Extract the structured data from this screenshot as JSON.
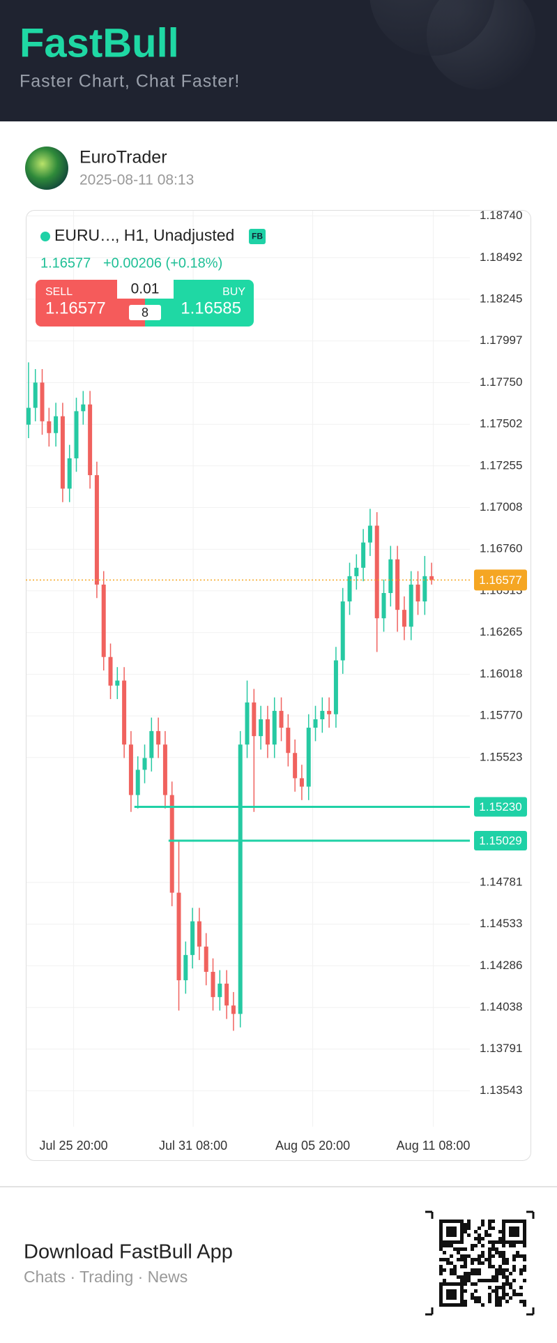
{
  "header": {
    "brand": "FastBull",
    "tagline": "Faster Chart, Chat Faster!"
  },
  "post": {
    "author": "EuroTrader",
    "date": "2025-08-11 08:13"
  },
  "chart_data": {
    "type": "candlestick",
    "symbol": "EURU…",
    "info": ", H1, Unadjusted",
    "badge": "FB",
    "quote": {
      "last": "1.16577",
      "change": "+0.00206 (+0.18%)"
    },
    "trade": {
      "sell_label": "SELL",
      "sell": "1.16577",
      "buy_label": "BUY",
      "buy": "1.16585",
      "lot": "0.01",
      "spread": "8"
    },
    "colors": {
      "up": "#26c9a2",
      "down": "#f0625e",
      "last": "#f5a623",
      "level": "#1fd1a6"
    },
    "open": [
      1.175,
      1.176,
      1.1775,
      1.1752,
      1.1745,
      1.1755,
      1.1712,
      1.173,
      1.1758,
      1.1762,
      1.172,
      1.1655,
      1.1612,
      1.1595,
      1.1598,
      1.156,
      1.153,
      1.1545,
      1.1552,
      1.1568,
      1.156,
      1.153,
      1.1472,
      1.142,
      1.1435,
      1.1455,
      1.144,
      1.1425,
      1.141,
      1.1418,
      1.1405,
      1.14,
      1.156,
      1.1585,
      1.1565,
      1.1575,
      1.156,
      1.158,
      1.157,
      1.1555,
      1.154,
      1.1535,
      1.157,
      1.1575,
      1.158,
      1.1578,
      1.161,
      1.1645,
      1.166,
      1.1665,
      1.168,
      1.169,
      1.1635,
      1.165,
      1.167,
      1.164,
      1.163,
      1.1655,
      1.1645,
      1.166
    ],
    "high": [
      1.1787,
      1.1783,
      1.1783,
      1.176,
      1.1763,
      1.1763,
      1.1738,
      1.1766,
      1.177,
      1.177,
      1.1728,
      1.1663,
      1.162,
      1.1606,
      1.1606,
      1.1568,
      1.1553,
      1.156,
      1.1576,
      1.1576,
      1.1568,
      1.1538,
      1.1503,
      1.1443,
      1.1463,
      1.1463,
      1.1448,
      1.1433,
      1.1426,
      1.1426,
      1.1413,
      1.1568,
      1.1598,
      1.1593,
      1.1583,
      1.1583,
      1.1588,
      1.1588,
      1.1578,
      1.1563,
      1.1548,
      1.1578,
      1.1583,
      1.1588,
      1.1588,
      1.1618,
      1.1653,
      1.1668,
      1.1673,
      1.1688,
      1.17,
      1.1698,
      1.1658,
      1.1678,
      1.1678,
      1.1648,
      1.1663,
      1.1663,
      1.1672,
      1.1668
    ],
    "low": [
      1.1742,
      1.1752,
      1.1744,
      1.1737,
      1.1737,
      1.1704,
      1.1704,
      1.1722,
      1.175,
      1.1712,
      1.1647,
      1.1604,
      1.1587,
      1.1587,
      1.1552,
      1.152,
      1.1522,
      1.1537,
      1.1544,
      1.1552,
      1.1522,
      1.1464,
      1.1402,
      1.1412,
      1.1427,
      1.1432,
      1.1417,
      1.1402,
      1.1402,
      1.1397,
      1.139,
      1.1392,
      1.1552,
      1.152,
      1.1557,
      1.1552,
      1.1552,
      1.1562,
      1.1547,
      1.1532,
      1.1527,
      1.1527,
      1.1562,
      1.1567,
      1.157,
      1.157,
      1.1602,
      1.1637,
      1.1652,
      1.1657,
      1.1672,
      1.1615,
      1.1627,
      1.1642,
      1.1627,
      1.1622,
      1.1622,
      1.1637,
      1.1637,
      1.1655
    ],
    "close": [
      1.176,
      1.1775,
      1.1752,
      1.1745,
      1.1755,
      1.1712,
      1.173,
      1.1758,
      1.1762,
      1.172,
      1.1655,
      1.1612,
      1.1595,
      1.1598,
      1.156,
      1.153,
      1.1545,
      1.1552,
      1.1568,
      1.156,
      1.153,
      1.1472,
      1.142,
      1.1435,
      1.1455,
      1.144,
      1.1425,
      1.141,
      1.1418,
      1.1405,
      1.14,
      1.156,
      1.1585,
      1.1565,
      1.1575,
      1.156,
      1.158,
      1.157,
      1.1555,
      1.154,
      1.1535,
      1.157,
      1.1575,
      1.158,
      1.1578,
      1.161,
      1.1645,
      1.166,
      1.1665,
      1.168,
      1.169,
      1.1635,
      1.165,
      1.167,
      1.164,
      1.163,
      1.1655,
      1.1645,
      1.166,
      1.16577
    ],
    "last_price": 1.16577,
    "levels": [
      {
        "value": 1.1523,
        "label": "1.15230",
        "from_x": 15.5
      },
      {
        "value": 1.15029,
        "label": "1.15029",
        "from_x": 20.5
      }
    ],
    "xlim": [
      -0.4,
      64.6
    ],
    "xticks": [
      {
        "value": 6.6,
        "label": "Jul 25 20:00"
      },
      {
        "value": 24.1,
        "label": "Jul 31 08:00"
      },
      {
        "value": 41.6,
        "label": "Aug 05 20:00"
      },
      {
        "value": 59.25,
        "label": "Aug 11 08:00"
      }
    ],
    "ylim": [
      1.1333,
      1.18775
    ],
    "yticks": [
      {
        "value": 1.1874,
        "label": "1.18740"
      },
      1.18492,
      1.18245,
      1.17997,
      {
        "value": 1.1775,
        "label": "1.17750"
      },
      1.17502,
      1.17255,
      1.17008,
      {
        "value": 1.1676,
        "label": "1.16760"
      },
      1.16513,
      1.16265,
      1.16018,
      {
        "value": 1.1577,
        "label": "1.15770"
      },
      1.15523,
      1.14781,
      1.14533,
      1.14286,
      1.14038,
      1.13791,
      1.13543
    ],
    "grid": true
  },
  "footer": {
    "title": "Download FastBull App",
    "subtitle": "Chats · Trading · News"
  }
}
